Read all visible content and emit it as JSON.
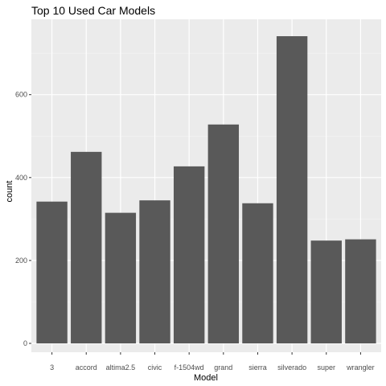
{
  "chart_data": {
    "type": "bar",
    "title": "Top 10 Used Car Models",
    "xlabel": "Model",
    "ylabel": "count",
    "categories": [
      "3",
      "accord",
      "altima2.5",
      "civic",
      "f-1504wd",
      "grand",
      "sierra",
      "silverado",
      "super",
      "wrangler"
    ],
    "values": [
      342,
      462,
      315,
      345,
      427,
      528,
      338,
      741,
      248,
      251
    ],
    "ylim": [
      0,
      760
    ],
    "yticks": [
      0,
      200,
      400,
      600
    ],
    "grid": true,
    "legend": "none",
    "colors": {
      "bar": "#595959",
      "panel_background": "#ebebeb",
      "grid_major": "#ffffff",
      "grid_minor": "#f4f4f4",
      "tick_text": "#4d4d4d"
    }
  }
}
